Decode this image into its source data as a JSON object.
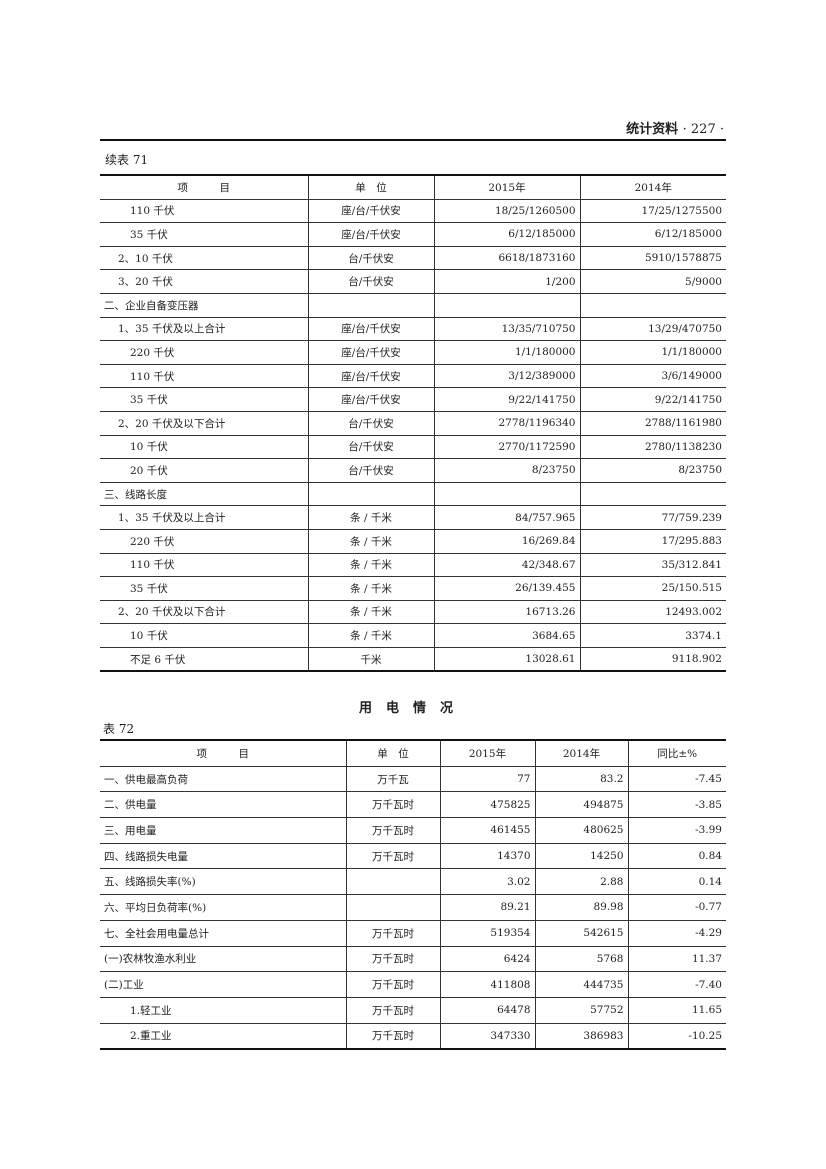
{
  "header": {
    "section": "统计资料",
    "page_number": "227"
  },
  "table71": {
    "caption": "续表 71",
    "columns": [
      "项　　　目",
      "单　位",
      "2015年",
      "2014年"
    ],
    "rows": [
      {
        "item": "110 千伏",
        "indent": 2,
        "unit": "座/台/千伏安",
        "y2015": "18/25/1260500",
        "y2014": "17/25/1275500"
      },
      {
        "item": "35 千伏",
        "indent": 2,
        "unit": "座/台/千伏安",
        "y2015": "6/12/185000",
        "y2014": "6/12/185000"
      },
      {
        "item": "2、10 千伏",
        "indent": 1,
        "unit": "台/千伏安",
        "y2015": "6618/1873160",
        "y2014": "5910/1578875"
      },
      {
        "item": "3、20 千伏",
        "indent": 1,
        "unit": "台/千伏安",
        "y2015": "1/200",
        "y2014": "5/9000"
      },
      {
        "item": "二、企业自备变压器",
        "indent": 0,
        "unit": "",
        "y2015": "",
        "y2014": ""
      },
      {
        "item": "1、35 千伏及以上合计",
        "indent": 1,
        "unit": "座/台/千伏安",
        "y2015": "13/35/710750",
        "y2014": "13/29/470750"
      },
      {
        "item": "220 千伏",
        "indent": 2,
        "unit": "座/台/千伏安",
        "y2015": "1/1/180000",
        "y2014": "1/1/180000"
      },
      {
        "item": "110 千伏",
        "indent": 2,
        "unit": "座/台/千伏安",
        "y2015": "3/12/389000",
        "y2014": "3/6/149000"
      },
      {
        "item": "35 千伏",
        "indent": 2,
        "unit": "座/台/千伏安",
        "y2015": "9/22/141750",
        "y2014": "9/22/141750"
      },
      {
        "item": "2、20 千伏及以下合计",
        "indent": 1,
        "unit": "台/千伏安",
        "y2015": "2778/1196340",
        "y2014": "2788/1161980"
      },
      {
        "item": "10 千伏",
        "indent": 2,
        "unit": "台/千伏安",
        "y2015": "2770/1172590",
        "y2014": "2780/1138230"
      },
      {
        "item": "20 千伏",
        "indent": 2,
        "unit": "台/千伏安",
        "y2015": "8/23750",
        "y2014": "8/23750"
      },
      {
        "item": "三、线路长度",
        "indent": 0,
        "unit": "",
        "y2015": "",
        "y2014": ""
      },
      {
        "item": "1、35 千伏及以上合计",
        "indent": 1,
        "unit": "条 / 千米",
        "y2015": "84/757.965",
        "y2014": "77/759.239"
      },
      {
        "item": "220 千伏",
        "indent": 2,
        "unit": "条 / 千米",
        "y2015": "16/269.84",
        "y2014": "17/295.883"
      },
      {
        "item": "110 千伏",
        "indent": 2,
        "unit": "条 / 千米",
        "y2015": "42/348.67",
        "y2014": "35/312.841"
      },
      {
        "item": "35 千伏",
        "indent": 2,
        "unit": "条 / 千米",
        "y2015": "26/139.455",
        "y2014": "25/150.515"
      },
      {
        "item": "2、20 千伏及以下合计",
        "indent": 1,
        "unit": "条 / 千米",
        "y2015": "16713.26",
        "y2014": "12493.002"
      },
      {
        "item": "10 千伏",
        "indent": 2,
        "unit": "条 / 千米",
        "y2015": "3684.65",
        "y2014": "3374.1"
      },
      {
        "item": "不足 6 千伏",
        "indent": 2,
        "unit": "千米",
        "y2015": "13028.61",
        "y2014": "9118.902"
      }
    ]
  },
  "title72": "用电情况",
  "table72": {
    "caption": "表 72",
    "columns": [
      "项　　　目",
      "单　位",
      "2015年",
      "2014年",
      "同比±%"
    ],
    "rows": [
      {
        "item": "一、供电最高负荷",
        "indent": 0,
        "unit": "万千瓦",
        "y2015": "77",
        "y2014": "83.2",
        "yoy": "-7.45"
      },
      {
        "item": "二、供电量",
        "indent": 0,
        "unit": "万千瓦时",
        "y2015": "475825",
        "y2014": "494875",
        "yoy": "-3.85"
      },
      {
        "item": "三、用电量",
        "indent": 0,
        "unit": "万千瓦时",
        "y2015": "461455",
        "y2014": "480625",
        "yoy": "-3.99"
      },
      {
        "item": "四、线路损失电量",
        "indent": 0,
        "unit": "万千瓦时",
        "y2015": "14370",
        "y2014": "14250",
        "yoy": "0.84"
      },
      {
        "item": "五、线路损失率(%)",
        "indent": 0,
        "unit": "",
        "y2015": "3.02",
        "y2014": "2.88",
        "yoy": "0.14"
      },
      {
        "item": "六、平均日负荷率(%)",
        "indent": 0,
        "unit": "",
        "y2015": "89.21",
        "y2014": "89.98",
        "yoy": "-0.77"
      },
      {
        "item": "七、全社会用电量总计",
        "indent": 0,
        "unit": "万千瓦时",
        "y2015": "519354",
        "y2014": "542615",
        "yoy": "-4.29"
      },
      {
        "item": "(一)农林牧渔水利业",
        "indent": 0,
        "unit": "万千瓦时",
        "y2015": "6424",
        "y2014": "5768",
        "yoy": "11.37"
      },
      {
        "item": "(二)工业",
        "indent": 0,
        "unit": "万千瓦时",
        "y2015": "411808",
        "y2014": "444735",
        "yoy": "-7.40"
      },
      {
        "item": "1.轻工业",
        "indent": 2,
        "unit": "万千瓦时",
        "y2015": "64478",
        "y2014": "57752",
        "yoy": "11.65"
      },
      {
        "item": "2.重工业",
        "indent": 2,
        "unit": "万千瓦时",
        "y2015": "347330",
        "y2014": "386983",
        "yoy": "-10.25"
      }
    ]
  }
}
